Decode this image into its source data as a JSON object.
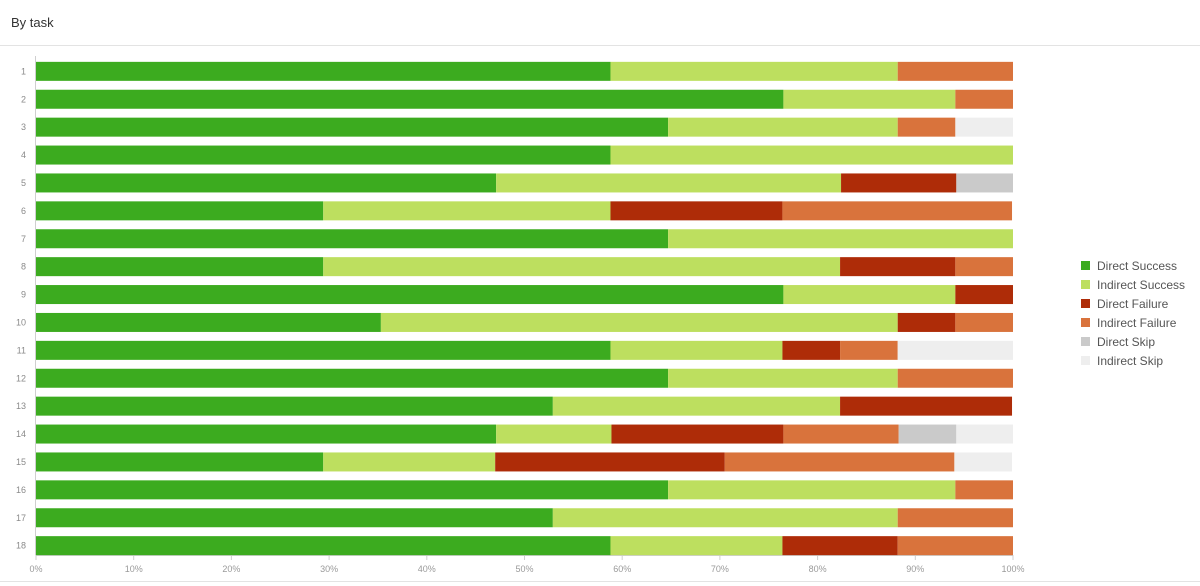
{
  "header": {
    "title": "By task"
  },
  "chart_data": {
    "type": "bar",
    "orientation": "horizontal",
    "stacked": true,
    "title": "By task",
    "categories": [
      "1",
      "2",
      "3",
      "4",
      "5",
      "6",
      "7",
      "8",
      "9",
      "10",
      "11",
      "12",
      "13",
      "14",
      "15",
      "16",
      "17",
      "18"
    ],
    "x_ticks": [
      "0%",
      "10%",
      "20%",
      "30%",
      "40%",
      "50%",
      "60%",
      "70%",
      "80%",
      "90%",
      "100%"
    ],
    "xlim": [
      0,
      100
    ],
    "grid": false,
    "legend_position": "right",
    "series": [
      {
        "name": "Direct Success",
        "color": "#3cab1f",
        "values": [
          58.8,
          76.5,
          64.7,
          58.8,
          47.1,
          29.4,
          64.7,
          29.4,
          76.5,
          35.3,
          58.8,
          64.7,
          52.9,
          47.1,
          29.4,
          64.7,
          52.9,
          58.8
        ]
      },
      {
        "name": "Indirect Success",
        "color": "#bddf5f",
        "values": [
          29.4,
          17.6,
          23.5,
          41.2,
          35.3,
          29.4,
          35.3,
          52.9,
          17.6,
          52.9,
          17.6,
          23.5,
          29.4,
          11.8,
          17.6,
          29.4,
          35.3,
          17.6
        ]
      },
      {
        "name": "Direct Failure",
        "color": "#ae2c08",
        "values": [
          0,
          0,
          0,
          0,
          11.8,
          17.6,
          0,
          11.8,
          5.9,
          5.9,
          5.9,
          0,
          17.6,
          17.6,
          23.5,
          0,
          0,
          11.8
        ]
      },
      {
        "name": "Indirect Failure",
        "color": "#d9733c",
        "values": [
          11.8,
          5.9,
          5.9,
          0,
          0,
          23.5,
          0,
          5.9,
          0,
          5.9,
          5.9,
          11.8,
          0,
          11.8,
          23.5,
          5.9,
          11.8,
          11.8
        ]
      },
      {
        "name": "Direct Skip",
        "color": "#cacaca",
        "values": [
          0,
          0,
          0,
          0,
          5.9,
          0,
          0,
          0,
          0,
          0,
          0,
          0,
          0,
          5.9,
          0,
          0,
          0,
          0
        ]
      },
      {
        "name": "Indirect Skip",
        "color": "#eeeeee",
        "values": [
          0,
          0,
          5.9,
          0,
          0,
          0,
          0,
          0,
          0,
          0,
          11.8,
          0,
          0,
          5.9,
          5.9,
          0,
          0,
          0
        ]
      }
    ]
  }
}
